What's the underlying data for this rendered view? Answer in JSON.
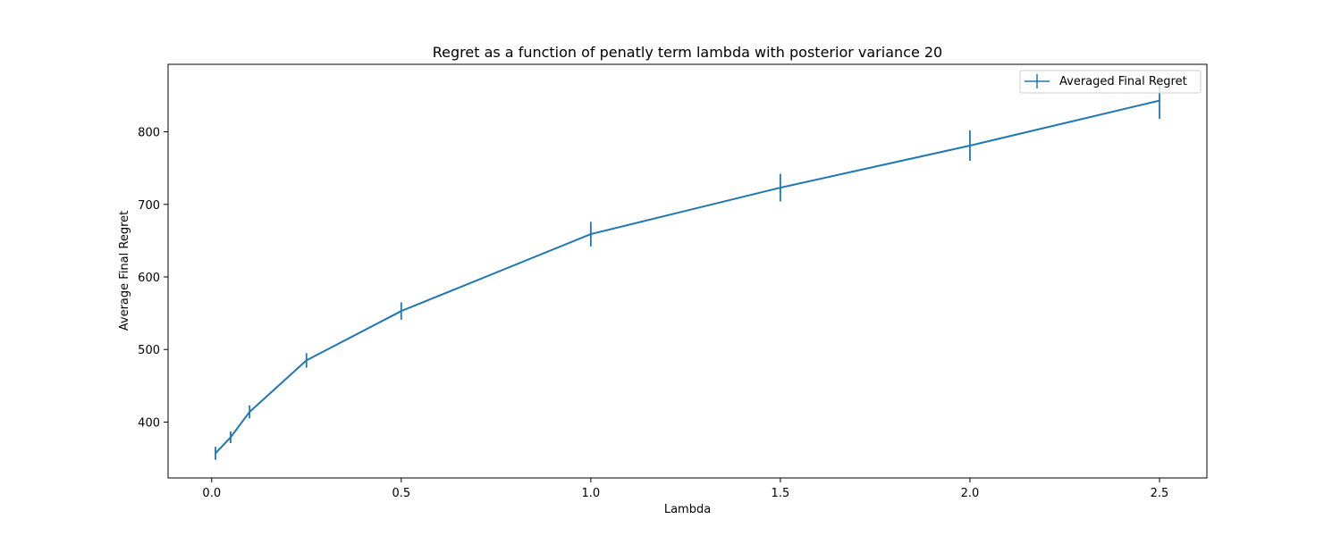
{
  "chart_data": {
    "type": "line",
    "title": "Regret as a function of penatly term lambda with posterior variance 20",
    "xlabel": "Lambda",
    "ylabel": "Average Final Regret",
    "xlim": [
      -0.115,
      2.625
    ],
    "ylim": [
      323,
      893
    ],
    "xticks": [
      0.0,
      0.5,
      1.0,
      1.5,
      2.0,
      2.5
    ],
    "xtick_labels": [
      "0.0",
      "0.5",
      "1.0",
      "1.5",
      "2.0",
      "2.5"
    ],
    "yticks": [
      400,
      500,
      600,
      700,
      800
    ],
    "ytick_labels": [
      "400",
      "500",
      "600",
      "700",
      "800"
    ],
    "grid": false,
    "legend_position": "top-right",
    "color": "#1f77b4",
    "series": [
      {
        "name": "Averaged Final Regret",
        "x": [
          0.01,
          0.05,
          0.1,
          0.25,
          0.5,
          1.0,
          1.5,
          2.0,
          2.5
        ],
        "y": [
          357,
          379,
          414,
          485,
          553,
          659,
          723,
          781,
          843
        ],
        "yerr": [
          9,
          8,
          9,
          10,
          12,
          17,
          19,
          21,
          25
        ]
      }
    ]
  }
}
